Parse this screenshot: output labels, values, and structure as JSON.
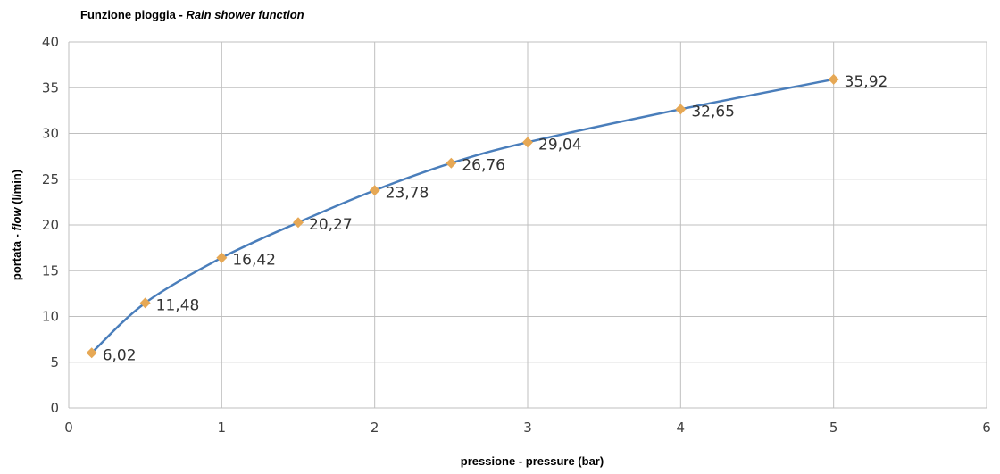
{
  "chart_data": {
    "type": "line",
    "title": "Funzione pioggia - ",
    "subtitle": "Rain shower function",
    "xlabel": "pressione - pressure  (bar)",
    "ylabel_prefix": "portata - ",
    "ylabel_italic": "flow",
    "ylabel_suffix": " (l/min)",
    "xlim": [
      0,
      6
    ],
    "ylim": [
      0,
      40
    ],
    "xticks": [
      0,
      1,
      2,
      3,
      4,
      5,
      6
    ],
    "yticks": [
      0,
      5,
      10,
      15,
      20,
      25,
      30,
      35,
      40
    ],
    "grid": true,
    "series": [
      {
        "x": [
          0.15,
          0.5,
          1,
          1.5,
          2,
          2.5,
          3,
          4,
          5
        ],
        "y": [
          6.02,
          11.48,
          16.42,
          20.27,
          23.78,
          26.76,
          29.04,
          32.65,
          35.92
        ],
        "labels": [
          "6,02",
          "11,48",
          "16,42",
          "20,27",
          "23,78",
          "26,76",
          "29,04",
          "32,65",
          "35,92"
        ]
      }
    ],
    "colors": {
      "line": "#4a7ebb",
      "marker": "#e6a855"
    }
  }
}
